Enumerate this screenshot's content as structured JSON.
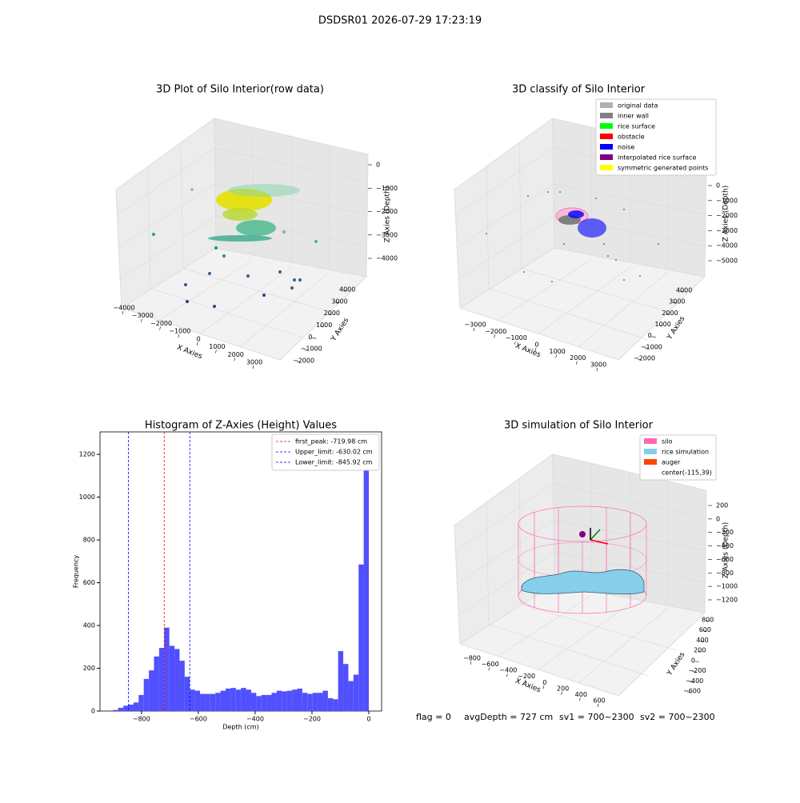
{
  "title": "DSDSR01 2026-07-29 17:23:19",
  "chart_data": [
    {
      "type": "scatter3d",
      "title": "3D Plot of Silo Interior(row data)",
      "xlabel": "X Axies",
      "ylabel": "Y Axies",
      "zlabel": "Z Axies (Depth)",
      "xlim": [
        -4000,
        3000
      ],
      "ylim": [
        -2000,
        4000
      ],
      "zlim": [
        -4000,
        0
      ],
      "xticks": [
        {
          "value": -4000,
          "label": "−4000"
        },
        {
          "value": -3000,
          "label": "−3000"
        },
        {
          "value": -2000,
          "label": "−2000"
        },
        {
          "value": -1000,
          "label": "−1000"
        },
        0,
        1000,
        2000,
        3000
      ],
      "yticks": [
        {
          "value": -2000,
          "label": "−2000"
        },
        {
          "value": -1000,
          "label": "−1000"
        },
        0,
        1000,
        2000,
        3000,
        4000
      ],
      "zticks": [
        0,
        {
          "value": -1000,
          "label": "−1000"
        },
        {
          "value": -2000,
          "label": "−2000"
        },
        {
          "value": -3000,
          "label": "−3000"
        },
        {
          "value": -4000,
          "label": "−4000"
        }
      ]
    },
    {
      "type": "scatter3d",
      "title": "3D classify of Silo Interior",
      "xlabel": "X Axies",
      "ylabel": "Y Axies",
      "zlabel": "Z Axies (Depth)",
      "xlim": [
        -3000,
        3000
      ],
      "ylim": [
        -2000,
        4000
      ],
      "zlim": [
        -5000,
        0
      ],
      "xticks": [
        {
          "value": -3000,
          "label": "−3000"
        },
        {
          "value": -2000,
          "label": "−2000"
        },
        {
          "value": -1000,
          "label": "−1000"
        },
        0,
        1000,
        2000,
        3000
      ],
      "yticks": [
        {
          "value": -2000,
          "label": "−2000"
        },
        {
          "value": -1000,
          "label": "−1000"
        },
        0,
        1000,
        2000,
        3000,
        4000
      ],
      "zticks": [
        0,
        {
          "value": -1000,
          "label": "−1000"
        },
        {
          "value": -2000,
          "label": "−2000"
        },
        {
          "value": -3000,
          "label": "−3000"
        },
        {
          "value": -4000,
          "label": "−4000"
        },
        {
          "value": -5000,
          "label": "−5000"
        }
      ],
      "legend": [
        {
          "name": "original data",
          "color": "#b0b0b0"
        },
        {
          "name": "inner wall",
          "color": "#808080"
        },
        {
          "name": "rice surface",
          "color": "#00ff00"
        },
        {
          "name": "obstacle",
          "color": "#ff0000"
        },
        {
          "name": "noise",
          "color": "#0000ff"
        },
        {
          "name": "interpolated rice surface",
          "color": "#800080"
        },
        {
          "name": "symmetric generated points",
          "color": "#ffff00"
        }
      ]
    },
    {
      "type": "histogram",
      "title": "Histogram of Z-Axies (Height) Values",
      "xlabel": "Depth (cm)",
      "ylabel": "Frequency",
      "color": "#5050ff",
      "bins": [
        -900,
        -882,
        -864,
        -846,
        -828,
        -810,
        -792,
        -774,
        -756,
        -738,
        -720,
        -702,
        -684,
        -666,
        -648,
        -630,
        -612,
        -594,
        -576,
        -558,
        -540,
        -522,
        -504,
        -486,
        -468,
        -450,
        -432,
        -414,
        -396,
        -378,
        -360,
        -342,
        -324,
        -306,
        -288,
        -270,
        -252,
        -234,
        -216,
        -198,
        -180,
        -162,
        -144,
        -126,
        -108,
        -90,
        -72,
        -54,
        -36,
        -18,
        0
      ],
      "values": [
        5,
        15,
        25,
        30,
        40,
        75,
        150,
        190,
        255,
        295,
        390,
        305,
        290,
        235,
        160,
        100,
        95,
        80,
        80,
        80,
        85,
        95,
        105,
        108,
        100,
        108,
        100,
        85,
        70,
        75,
        75,
        85,
        95,
        92,
        95,
        100,
        105,
        85,
        80,
        85,
        85,
        95,
        60,
        55,
        280,
        220,
        140,
        170,
        685,
        1230
      ],
      "xlim": [
        -946,
        45
      ],
      "ylim": [
        0,
        1305
      ],
      "xticks": [
        {
          "value": -800,
          "label": "−800"
        },
        {
          "value": -600,
          "label": "−600"
        },
        {
          "value": -400,
          "label": "−400"
        },
        {
          "value": -200,
          "label": "−200"
        },
        0
      ],
      "yticks": [
        0,
        200,
        400,
        600,
        800,
        1000,
        1200
      ],
      "vlines": [
        {
          "label": "first_peak: -719.98 cm",
          "value": -719.98,
          "color": "#ff0000"
        },
        {
          "label": "Upper_limit: -630.02 cm",
          "value": -630.02,
          "color": "#0000ff"
        },
        {
          "label": "Lower_limit: -845.92 cm",
          "value": -845.92,
          "color": "#0000ff"
        }
      ],
      "legend": "upper right"
    },
    {
      "type": "surface3d",
      "title": "3D simulation of Silo Interior",
      "xlabel": "X Axies",
      "ylabel": "Y Axies",
      "zlabel": "Z Axies (Depth)",
      "xlim": [
        -800,
        600
      ],
      "ylim": [
        -600,
        800
      ],
      "zlim": [
        -1200,
        200
      ],
      "xticks": [
        {
          "value": -800,
          "label": "−800"
        },
        {
          "value": -600,
          "label": "−600"
        },
        {
          "value": -400,
          "label": "−400"
        },
        {
          "value": -200,
          "label": "−200"
        },
        0,
        200,
        400,
        600
      ],
      "yticks": [
        {
          "value": -600,
          "label": "−600"
        },
        {
          "value": -400,
          "label": "−400"
        },
        {
          "value": -200,
          "label": "−200"
        },
        0,
        200,
        400,
        600,
        800
      ],
      "zticks": [
        200,
        0,
        {
          "value": -200,
          "label": "−200"
        },
        {
          "value": -400,
          "label": "−400"
        },
        {
          "value": -600,
          "label": "−600"
        },
        {
          "value": -800,
          "label": "−800"
        },
        {
          "value": -1000,
          "label": "−1000"
        },
        {
          "value": -1200,
          "label": "−1200"
        }
      ],
      "legend": [
        {
          "name": "silo",
          "color": "#ff69b4"
        },
        {
          "name": "rice simulation",
          "color": "#87ceeb"
        },
        {
          "name": "auger",
          "color": "#ff4500"
        },
        {
          "name": "center(-115,39)"
        }
      ]
    }
  ],
  "footer": [
    "flag = 0",
    "avgDepth = 727 cm",
    "sv1 = 700~2300",
    "sv2 = 700~2300"
  ]
}
